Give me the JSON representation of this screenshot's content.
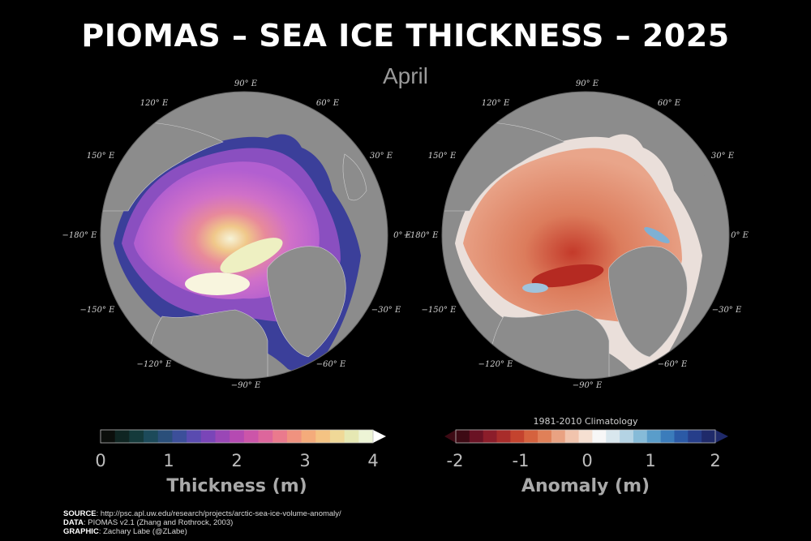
{
  "title": "PIOMAS – SEA ICE THICKNESS – 2025",
  "subtitle": "April",
  "maps": {
    "lon_labels": {
      "lon_90e": "90° E",
      "lon_120e": "120° E",
      "lon_60e": "60° E",
      "lon_150e": "150° E",
      "lon_30e": "30° E",
      "lon_180e": "−180° E",
      "lon_0e": "0° E",
      "lon_m150e": "−150° E",
      "lon_m30e": "−30° E",
      "lon_m120e": "−120° E",
      "lon_m60e": "−60° E",
      "lon_m90e": "−90° E"
    }
  },
  "thickness_colorbar": {
    "ticks": [
      "0",
      "1",
      "2",
      "3",
      "4"
    ],
    "label": "Thickness (m)",
    "colors": [
      "#0b0e0b",
      "#0f2522",
      "#143a3b",
      "#1c4a5a",
      "#2a4f7a",
      "#3c4f9a",
      "#5a4bb0",
      "#7a45b8",
      "#9a47b6",
      "#b54ab2",
      "#cc55a9",
      "#dd669c",
      "#ea7a8d",
      "#f0927f",
      "#f4ab7b",
      "#f4c383",
      "#f0d897",
      "#e6e8b3",
      "#edf4d6"
    ]
  },
  "anomaly_colorbar": {
    "ticks": [
      "-2",
      "-1",
      "0",
      "1",
      "2"
    ],
    "label": "Anomaly (m)",
    "caption": "1981-2010 Climatology",
    "colors": [
      "#3d0a14",
      "#6a1224",
      "#8c1d2a",
      "#a82c2a",
      "#c4432e",
      "#d5623e",
      "#e08058",
      "#e9a282",
      "#f1c4ad",
      "#f6e0d2",
      "#f7f7f7",
      "#d9e7ee",
      "#b4d3e4",
      "#86bbd8",
      "#5a9dca",
      "#3b7cbb",
      "#2b5aa6",
      "#263e8a",
      "#1f2a6a"
    ]
  },
  "credits": {
    "source_label": "SOURCE",
    "source_value": ": http://psc.apl.uw.edu/research/projects/arctic-sea-ice-volume-anomaly/",
    "data_label": "DATA",
    "data_value": ": PIOMAS v2.1 (Zhang and Rothrock, 2003)",
    "graphic_label": "GRAPHIC",
    "graphic_value": ": Zachary Labe (@ZLabe)"
  }
}
